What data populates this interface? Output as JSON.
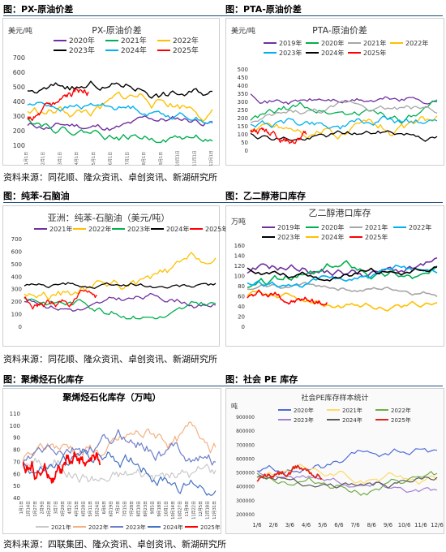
{
  "figures": [
    {
      "caption": "图：PX-原油价差",
      "title": "PX-原油价差",
      "unit": "美元/吨",
      "source": "资料来源：同花顺、隆众资讯、卓创资讯、新湖研究所",
      "legend": [
        "2020年",
        "2021年",
        "2022年",
        "2023年",
        "2024年",
        "2025年"
      ],
      "yticks": [
        "100",
        "200",
        "300",
        "400",
        "500",
        "600",
        "700"
      ],
      "xticks": [
        "1月1日",
        "2月1日",
        "3月1日",
        "4月1日",
        "5月1日",
        "6月1日",
        "7月1日",
        "8月1日",
        "9月1日",
        "10月1日",
        "11月1日",
        "12月1日"
      ],
      "colors": [
        "#7030a0",
        "#00b050",
        "#ffc000",
        "#000000",
        "#00b0f0",
        "#ff0000"
      ]
    },
    {
      "caption": "图：PTA-原油价差",
      "title": "PTA-原油价差",
      "unit": "美元/吨",
      "legend": [
        "2019年",
        "2020年",
        "2021年",
        "2022年",
        "2023年",
        "2024年",
        "2025年"
      ],
      "yticks": [
        "0",
        "50",
        "100",
        "150",
        "200",
        "250",
        "300",
        "350",
        "400",
        "450",
        "500"
      ],
      "colors": [
        "#7030a0",
        "#00b050",
        "#a6a6a6",
        "#ffc000",
        "#00b0f0",
        "#000000",
        "#ff0000"
      ]
    },
    {
      "caption": "图：纯苯-石脑油",
      "title": "亚洲：纯苯-石脑油（美元/吨）",
      "legend": [
        "2021年",
        "2022年",
        "2023年",
        "2024年",
        "2025年"
      ],
      "yticks": [
        "0",
        "100",
        "200",
        "300",
        "400",
        "500",
        "600",
        "700"
      ],
      "source": "资料来源：同花顺、隆众资讯、卓创资讯、新湖研究所",
      "colors": [
        "#7030a0",
        "#ffc000",
        "#00b050",
        "#000000",
        "#ff0000"
      ]
    },
    {
      "caption": "图：乙二醇港口库存",
      "title": "乙二醇港口库存",
      "unit": "万吨",
      "legend": [
        "2019年",
        "2020年",
        "2021年",
        "2022年",
        "2023年",
        "2024年",
        "2025年"
      ],
      "yticks": [
        "0",
        "20",
        "40",
        "60",
        "80",
        "100",
        "120",
        "140",
        "160"
      ],
      "colors": [
        "#7030a0",
        "#00b050",
        "#a6a6a6",
        "#00b0f0",
        "#000000",
        "#ffc000",
        "#ff0000"
      ]
    },
    {
      "caption": "图：聚烯烃石化库存",
      "title": "聚烯烃石化库存（万吨）",
      "legend": [
        "2021年",
        "2022年",
        "2023年",
        "2024年",
        "2025年"
      ],
      "yticks": [
        "40",
        "50",
        "60",
        "70",
        "80",
        "90",
        "100",
        "110"
      ],
      "xticks": [
        "1月1日",
        "1月14日",
        "1月27日",
        "2月9日",
        "2月22日",
        "3月7日",
        "3月20日",
        "4月2日",
        "4月15日",
        "4月28日",
        "5月11日",
        "5月24日",
        "6月6日",
        "6月19日",
        "7月2日",
        "7月15日",
        "7月28日",
        "8月10日",
        "8月23日",
        "9月5日",
        "9月18日",
        "10月1日",
        "10月14日",
        "10月27日",
        "11月9日",
        "11月22日",
        "12月5日",
        "12月18日",
        "12月31日"
      ],
      "source": "资料来源：四联集团、隆众资讯、卓创资讯、新湖研究所",
      "colors": [
        "#c9c9c9",
        "#f4b183",
        "#6f7ec9",
        "#4472c4",
        "#ff0000"
      ]
    },
    {
      "caption": "图：社会 PE 库存",
      "title": "社会PE库存样本统计",
      "unit": "吨",
      "legend": [
        "2020年",
        "2021年",
        "2022年",
        "2023年",
        "2024年",
        "2025年"
      ],
      "yticks": [
        "200000",
        "300000",
        "400000",
        "500000",
        "600000",
        "700000",
        "800000",
        "900000"
      ],
      "xticks": [
        "1/6",
        "2/6",
        "3/6",
        "4/6",
        "5/6",
        "6/6",
        "7/6",
        "8/6",
        "9/6",
        "10/6",
        "11/6",
        "12/6"
      ],
      "colors": [
        "#4f6bd8",
        "#ffd966",
        "#70ad47",
        "#a57fd6",
        "#595959",
        "#e2231a"
      ]
    }
  ]
}
